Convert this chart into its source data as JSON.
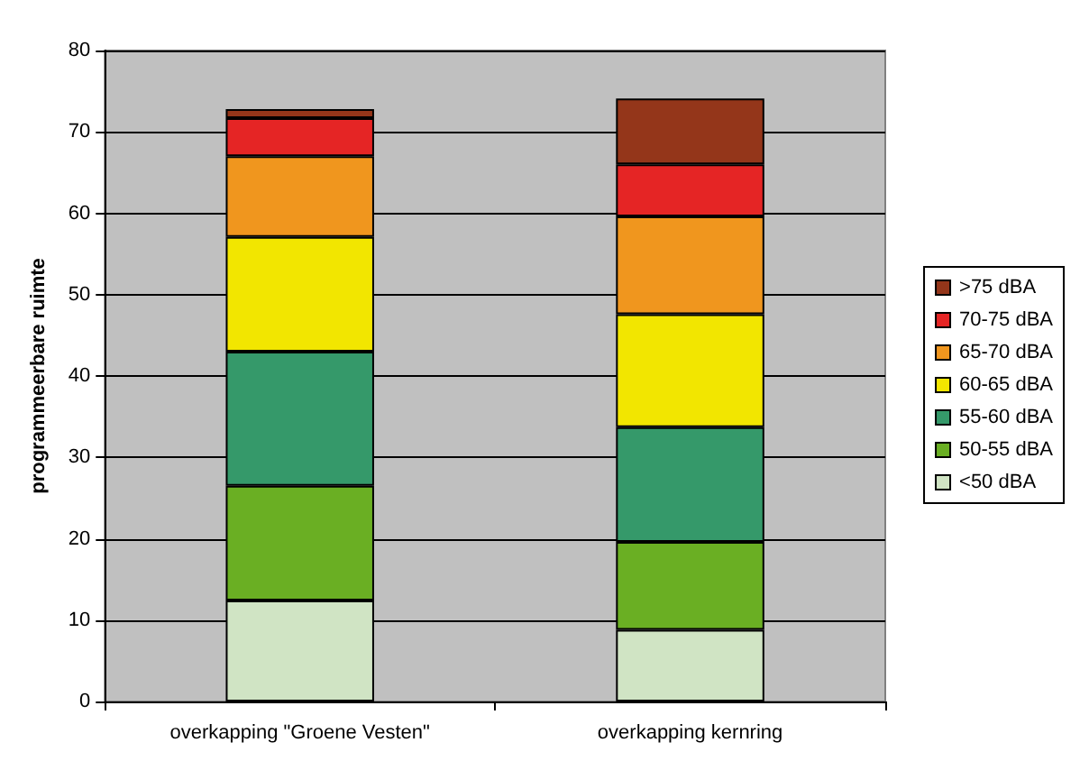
{
  "chart_data": {
    "type": "bar",
    "stacked": true,
    "ylabel": "programmeerbare ruimte",
    "categories": [
      "overkapping \"Groene Vesten\"",
      "overkapping kernring"
    ],
    "ylim": [
      0,
      80
    ],
    "yticks": [
      0,
      10,
      20,
      30,
      40,
      50,
      60,
      70,
      80
    ],
    "grid": "y",
    "legend": "right",
    "series": [
      {
        "name": "<50 dBA",
        "color": "#d0e4c4",
        "values": [
          12.4,
          8.8
        ]
      },
      {
        "name": "50-55 dBA",
        "color": "#6aaf23",
        "values": [
          14.1,
          10.8
        ]
      },
      {
        "name": "55-60 dBA",
        "color": "#35996a",
        "values": [
          16.5,
          14.1
        ]
      },
      {
        "name": "60-65 dBA",
        "color": "#f2e600",
        "values": [
          14.1,
          13.9
        ]
      },
      {
        "name": "65-70 dBA",
        "color": "#f0961e",
        "values": [
          9.9,
          12.0
        ]
      },
      {
        "name": "70-75 dBA",
        "color": "#e52525",
        "values": [
          4.7,
          6.4
        ]
      },
      {
        "name": ">75 dBA",
        "color": "#94361a",
        "values": [
          1.1,
          8.1
        ]
      }
    ]
  }
}
